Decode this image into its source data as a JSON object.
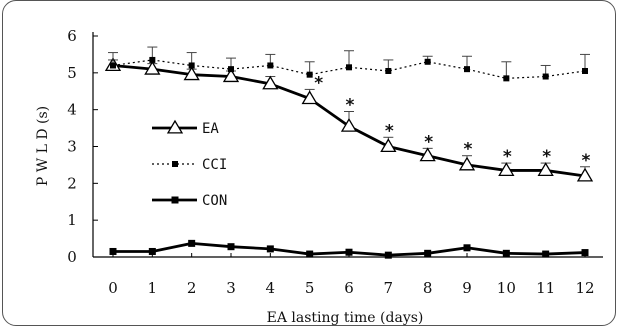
{
  "chart_data": {
    "type": "line",
    "xlabel": "EA lasting time (days)",
    "ylabel": "P W L D (s)",
    "x": [
      0,
      1,
      2,
      3,
      4,
      5,
      6,
      7,
      8,
      9,
      10,
      11,
      12
    ],
    "xlim": [
      0,
      12
    ],
    "ylim": [
      0,
      6
    ],
    "yticks": [
      0,
      1,
      2,
      3,
      4,
      5,
      6
    ],
    "grid": false,
    "legend_position": "left-middle",
    "series": [
      {
        "name": "EA",
        "style": "solid-thick-open-triangle",
        "color": "#000000",
        "values": [
          5.2,
          5.1,
          4.95,
          4.9,
          4.7,
          4.3,
          3.55,
          3.0,
          2.75,
          2.5,
          2.35,
          2.35,
          2.2
        ],
        "error": [
          0.15,
          0.15,
          0.15,
          0.15,
          0.2,
          0.25,
          0.4,
          0.25,
          0.2,
          0.25,
          0.2,
          0.2,
          0.25
        ]
      },
      {
        "name": "CCI",
        "style": "dotted-square",
        "color": "#000000",
        "values": [
          5.2,
          5.35,
          5.2,
          5.1,
          5.2,
          4.95,
          5.15,
          5.05,
          5.3,
          5.1,
          4.85,
          4.9,
          5.05
        ],
        "error": [
          0.35,
          0.35,
          0.35,
          0.3,
          0.3,
          0.35,
          0.45,
          0.3,
          0.15,
          0.35,
          0.45,
          0.3,
          0.45
        ]
      },
      {
        "name": "CON",
        "style": "solid-thick-filled-square",
        "color": "#000000",
        "values": [
          0.15,
          0.15,
          0.37,
          0.28,
          0.22,
          0.08,
          0.13,
          0.05,
          0.1,
          0.25,
          0.1,
          0.08,
          0.12
        ],
        "error": []
      }
    ],
    "annotations": [
      {
        "x": 5,
        "text": "*"
      },
      {
        "x": 6,
        "text": "*"
      },
      {
        "x": 7,
        "text": "*"
      },
      {
        "x": 8,
        "text": "*"
      },
      {
        "x": 9,
        "text": "*"
      },
      {
        "x": 10,
        "text": "*"
      },
      {
        "x": 11,
        "text": "*"
      },
      {
        "x": 12,
        "text": "*"
      }
    ]
  }
}
